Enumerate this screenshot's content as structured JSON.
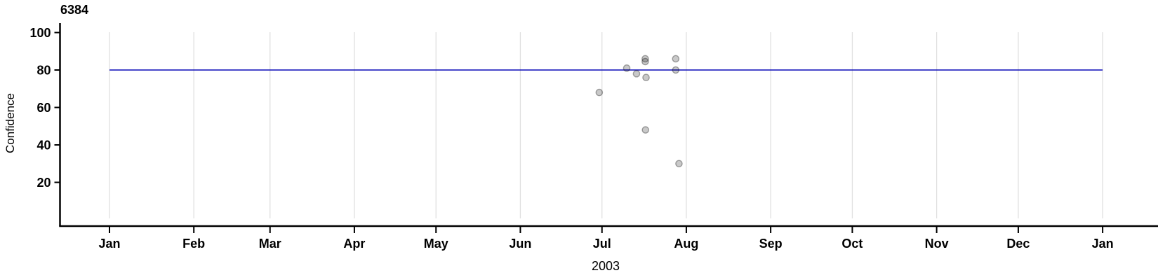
{
  "chart_data": {
    "type": "scatter",
    "title": "6384",
    "ylabel": "Confidence",
    "xlabel": "2003",
    "x_axis": {
      "unit": "month ticks across one year (Jan 2003 to Jan 2004)",
      "tick_labels": [
        "Jan",
        "Feb",
        "Mar",
        "Apr",
        "May",
        "Jun",
        "Jul",
        "Aug",
        "Sep",
        "Oct",
        "Nov",
        "Dec",
        "Jan"
      ],
      "tick_days": [
        0,
        31,
        59,
        90,
        120,
        151,
        181,
        212,
        243,
        273,
        304,
        334,
        365
      ],
      "year_span_days": 365
    },
    "y_axis": {
      "ticks": [
        20,
        40,
        60,
        80,
        100
      ],
      "range": [
        0,
        105
      ]
    },
    "grid": "vertical gridlines at each month, no horizontal gridlines",
    "legend": "none",
    "reference_line": {
      "value": 80,
      "span_days": [
        0,
        365
      ]
    },
    "points": [
      {
        "date": "Jun 30",
        "day": 180.0,
        "confidence": 68
      },
      {
        "date": "Jul 10",
        "day": 190.1,
        "confidence": 81
      },
      {
        "date": "Jul 13",
        "day": 193.7,
        "confidence": 78
      },
      {
        "date": "Jul 16",
        "day": 196.9,
        "confidence": 86
      },
      {
        "date": "Jul 16",
        "day": 196.9,
        "confidence": 84.5
      },
      {
        "date": "Jul 17",
        "day": 197.2,
        "confidence": 76
      },
      {
        "date": "Jul 16",
        "day": 197.0,
        "confidence": 48
      },
      {
        "date": "Jul 28",
        "day": 208.1,
        "confidence": 86
      },
      {
        "date": "Jul 28",
        "day": 208.1,
        "confidence": 80
      },
      {
        "date": "Jul 29",
        "day": 209.3,
        "confidence": 30
      }
    ],
    "colors": {
      "reference_line": "#0909b8",
      "gridline": "#e0e0e0",
      "axis": "#000000",
      "text": "#000000",
      "point_fill": "rgba(0,0,0,0.21)",
      "point_stroke": "rgba(0,0,0,0.33)"
    }
  }
}
